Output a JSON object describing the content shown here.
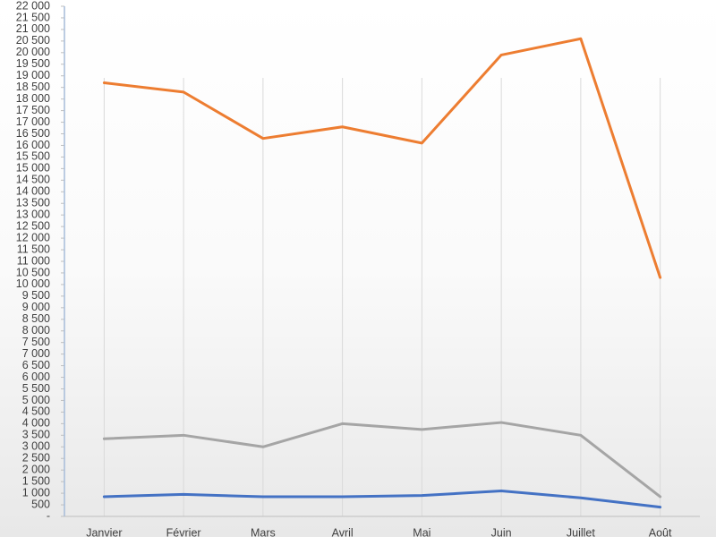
{
  "chart_data": {
    "type": "line",
    "categories": [
      "Janvier",
      "Février",
      "Mars",
      "Avril",
      "Mai",
      "Juin",
      "Juillet",
      "Août"
    ],
    "series": [
      {
        "color": "#ed7d31",
        "values": [
          18700,
          18300,
          16300,
          16800,
          16100,
          19900,
          20600,
          10300
        ]
      },
      {
        "color": "#a5a5a5",
        "values": [
          3350,
          3500,
          3000,
          4000,
          3750,
          4050,
          3500,
          850
        ]
      },
      {
        "color": "#4472c4",
        "values": [
          850,
          950,
          850,
          850,
          900,
          1100,
          800,
          400
        ]
      }
    ],
    "ylim": [
      0,
      22000
    ],
    "yticks": [
      {
        "value": 0,
        "label": "-"
      },
      500,
      {
        "value": 1000,
        "label": "1 000"
      },
      {
        "value": 1500,
        "label": "1 500"
      },
      {
        "value": 2000,
        "label": "2 000"
      },
      {
        "value": 2500,
        "label": "2 500"
      },
      {
        "value": 3000,
        "label": "3 000"
      },
      {
        "value": 3500,
        "label": "3 500"
      },
      {
        "value": 4000,
        "label": "4 000"
      },
      {
        "value": 4500,
        "label": "4 500"
      },
      {
        "value": 5000,
        "label": "5 000"
      },
      {
        "value": 5500,
        "label": "5 500"
      },
      {
        "value": 6000,
        "label": "6 000"
      },
      {
        "value": 6500,
        "label": "6 500"
      },
      {
        "value": 7000,
        "label": "7 000"
      },
      {
        "value": 7500,
        "label": "7 500"
      },
      {
        "value": 8000,
        "label": "8 000"
      },
      {
        "value": 8500,
        "label": "8 500"
      },
      {
        "value": 9000,
        "label": "9 000"
      },
      {
        "value": 9500,
        "label": "9 500"
      },
      {
        "value": 10000,
        "label": "10 000"
      },
      {
        "value": 10500,
        "label": "10 500"
      },
      {
        "value": 11000,
        "label": "11 000"
      },
      {
        "value": 11500,
        "label": "11 500"
      },
      {
        "value": 12000,
        "label": "12 000"
      },
      {
        "value": 12500,
        "label": "12 500"
      },
      {
        "value": 13000,
        "label": "13 000"
      },
      {
        "value": 13500,
        "label": "13 500"
      },
      {
        "value": 14000,
        "label": "14 000"
      },
      {
        "value": 14500,
        "label": "14 500"
      },
      {
        "value": 15000,
        "label": "15 000"
      },
      {
        "value": 15500,
        "label": "15 500"
      },
      {
        "value": 16000,
        "label": "16 000"
      },
      {
        "value": 16500,
        "label": "16 500"
      },
      {
        "value": 17000,
        "label": "17 000"
      },
      {
        "value": 17500,
        "label": "17 500"
      },
      {
        "value": 18000,
        "label": "18 000"
      },
      {
        "value": 18500,
        "label": "18 500"
      },
      {
        "value": 19000,
        "label": "19 000"
      },
      {
        "value": 19500,
        "label": "19 500"
      },
      {
        "value": 20000,
        "label": "20 000"
      },
      {
        "value": 20500,
        "label": "20 500"
      },
      {
        "value": 21000,
        "label": "21 000"
      },
      {
        "value": 21500,
        "label": "21 500"
      },
      {
        "value": 22000,
        "label": "22 000"
      }
    ],
    "grid": "x"
  }
}
